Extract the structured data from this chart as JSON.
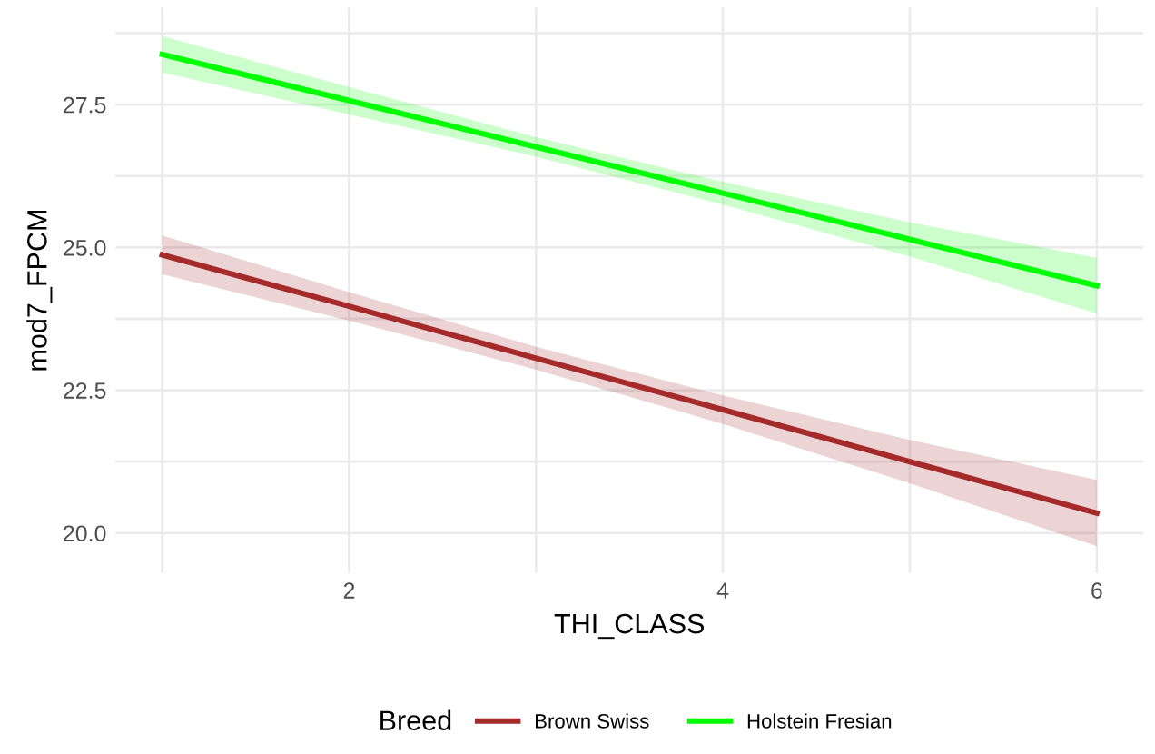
{
  "chart_data": {
    "type": "line",
    "xlabel": "THI_CLASS",
    "ylabel": "mod7_FPCM",
    "legend_title": "Breed",
    "legend": "bottom",
    "grid": true,
    "line_style": "solid",
    "x": [
      1,
      2,
      3,
      4,
      5,
      6
    ],
    "xlim": [
      0.75,
      6.25
    ],
    "xticks": [
      {
        "value": 1,
        "label": null
      },
      2,
      {
        "value": 3,
        "label": null
      },
      4,
      {
        "value": 5,
        "label": null
      },
      6
    ],
    "ylim": [
      19.3,
      29.2
    ],
    "yticks": [
      {
        "value": 20,
        "label": "20.0"
      },
      {
        "value": 21.25,
        "label": null
      },
      22.5,
      {
        "value": 23.75,
        "label": null
      },
      {
        "value": 25,
        "label": "25.0"
      },
      {
        "value": 26.25,
        "label": null
      },
      27.5,
      {
        "value": 28.75,
        "label": null
      }
    ],
    "series": [
      {
        "name": "Brown Swiss",
        "color": "#a52a2a",
        "values": [
          24.87,
          23.97,
          23.06,
          22.16,
          21.25,
          20.35
        ],
        "lower": [
          24.53,
          23.72,
          22.86,
          21.91,
          20.87,
          19.77
        ],
        "upper": [
          25.21,
          24.22,
          23.26,
          22.41,
          21.63,
          20.93
        ]
      },
      {
        "name": "Holstein Fresian",
        "color": "#00ff00",
        "values": [
          28.38,
          27.57,
          26.76,
          25.95,
          25.14,
          24.33
        ],
        "lower": [
          28.06,
          27.33,
          26.59,
          25.75,
          24.84,
          23.84
        ],
        "upper": [
          28.7,
          27.81,
          26.93,
          26.15,
          25.44,
          24.82
        ]
      }
    ]
  }
}
